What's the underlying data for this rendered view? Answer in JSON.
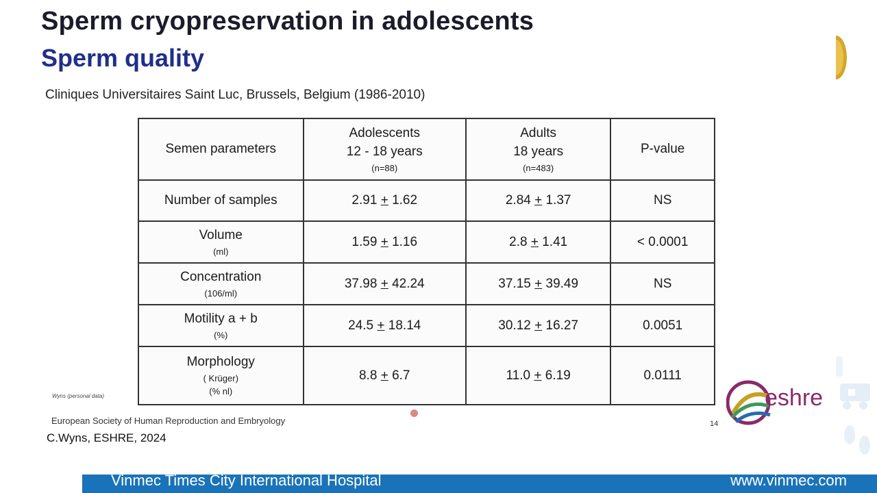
{
  "slide": {
    "title": "Sperm cryopreservation in adolescents",
    "subtitle": "Sperm quality",
    "source": "Cliniques Universitaires Saint Luc, Brussels, Belgium (1986-2010)"
  },
  "table": {
    "headers": {
      "param": "Semen parameters",
      "adolescents": "Adolescents",
      "adolescents_age": "12 - 18 years",
      "adolescents_n": "(n=88)",
      "adults": "Adults",
      "adults_age": "18 years",
      "adults_n": "(n=483)",
      "pvalue": "P-value"
    },
    "rows": [
      {
        "label": "Number of samples",
        "unit": "",
        "adol_mean": "2.91",
        "adol_sd": "1.62",
        "adult_mean": "2.84",
        "adult_sd": "1.37",
        "p": "NS",
        "bold": false
      },
      {
        "label": "Volume",
        "unit": "(ml)",
        "adol_mean": "1.59",
        "adol_sd": "1.16",
        "adult_mean": "2.8",
        "adult_sd": "1.41",
        "p": "< 0.0001",
        "bold": true
      },
      {
        "label": "Concentration",
        "unit": "(106/ml)",
        "adol_mean": "37.98",
        "adol_sd": "42.24",
        "adult_mean": "37.15",
        "adult_sd": "39.49",
        "p": "NS",
        "bold": false
      },
      {
        "label": "Motility a + b",
        "unit": "(%)",
        "adol_mean": "24.5",
        "adol_sd": "18.14",
        "adult_mean": "30.12",
        "adult_sd": "16.27",
        "p": "0.0051",
        "bold": true
      },
      {
        "label": "Morphology",
        "unit": "( Krüger)",
        "unit2": "(% nl)",
        "adol_mean": "8.8",
        "adol_sd": "6.7",
        "adult_mean": "11.0",
        "adult_sd": "6.19",
        "p": "0.0111",
        "bold": true
      }
    ],
    "pm_symbol": "+"
  },
  "footnotes": {
    "wyns": "Wyns (personal data)",
    "society": "European Society of Human Reproduction and Embryology",
    "page": "14",
    "credit": "C.Wyns, ESHRE, 2024"
  },
  "logo": {
    "name": "eshre-logo",
    "text": "eshre"
  },
  "footer": {
    "hospital": "Vinmec Times City International Hospital",
    "website": "www.vinmec.com"
  },
  "colors": {
    "footer_bar": "#1a73b8",
    "subtitle": "#1f2f8a",
    "eshre": "#8a2a6a"
  }
}
